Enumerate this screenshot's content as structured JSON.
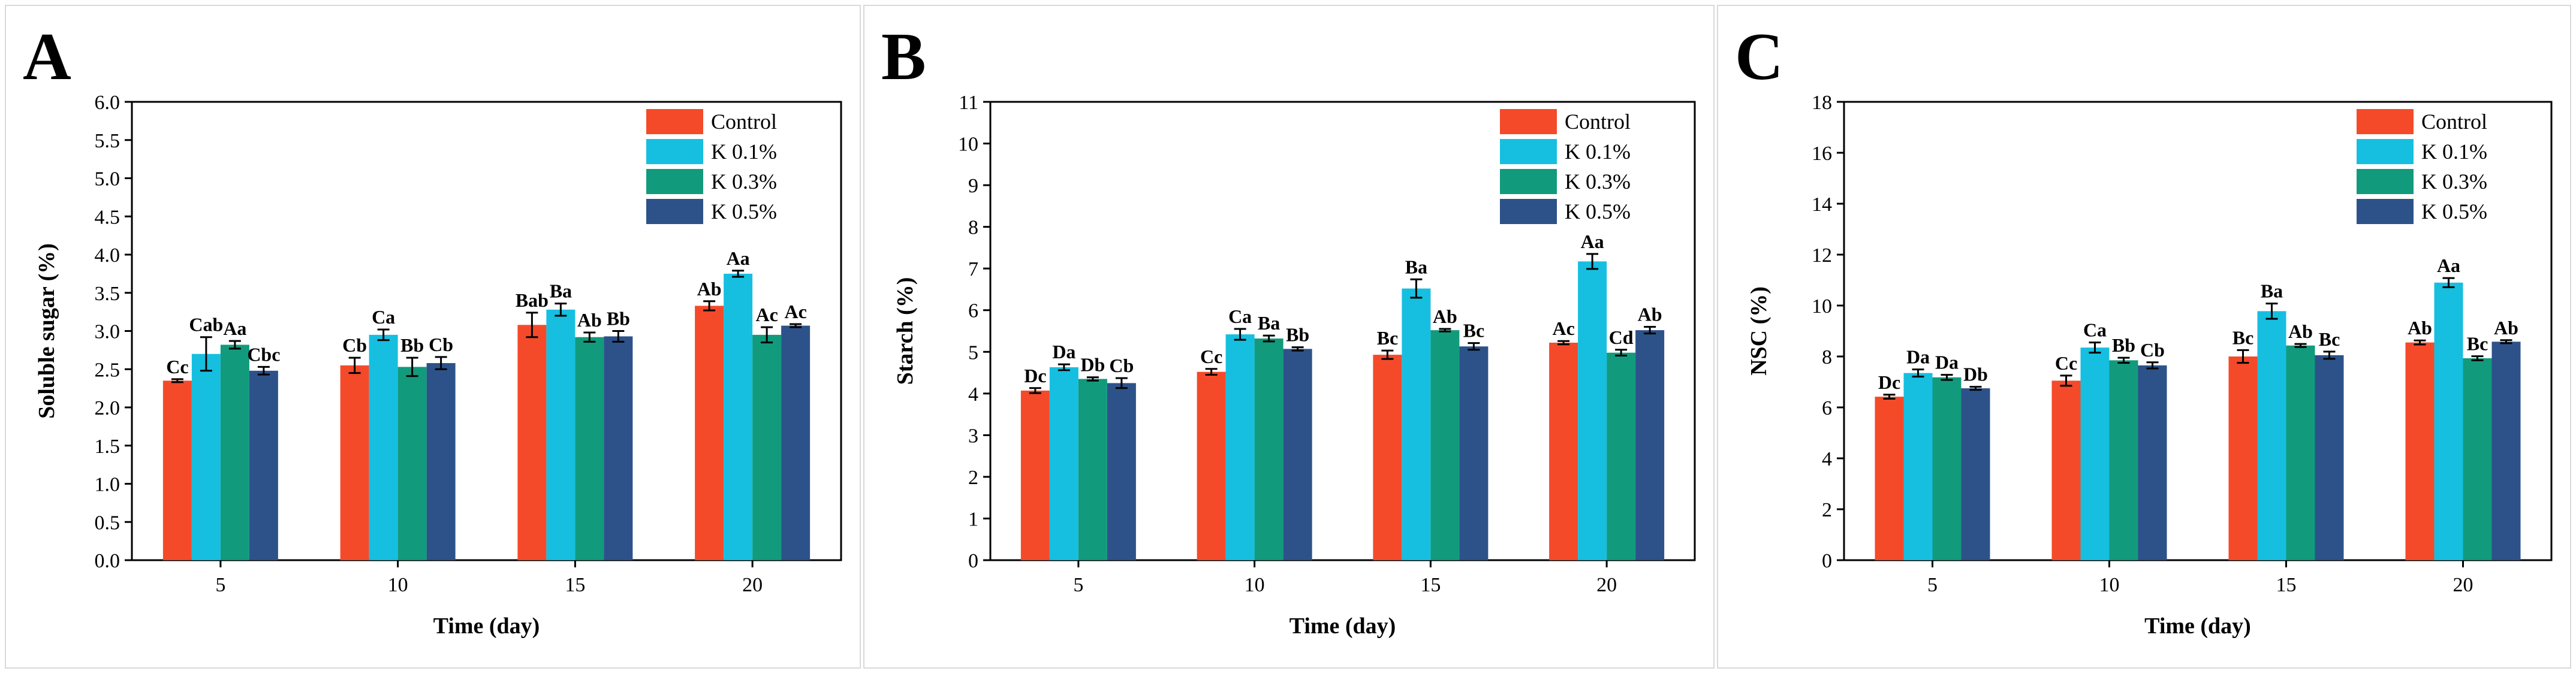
{
  "figure": {
    "colors": {
      "Control": "#f44a2a",
      "K 0.1%": "#16bfe0",
      "K 0.3%": "#129a7c",
      "K 0.5%": "#2c5289"
    }
  },
  "chart_data": [
    {
      "panel_label": "A",
      "type": "bar",
      "xlabel": "Time (day)",
      "ylabel": "Soluble sugar (%)",
      "ylim": [
        0,
        6.0
      ],
      "yticks": [
        "0.0",
        "0.5",
        "1.0",
        "1.5",
        "2.0",
        "2.5",
        "3.0",
        "3.5",
        "4.0",
        "4.5",
        "5.0",
        "5.5",
        "6.0"
      ],
      "categories": [
        "5",
        "10",
        "15",
        "20"
      ],
      "legend": {
        "position": "top-right",
        "entries": [
          "Control",
          "K 0.1%",
          "K 0.3%",
          "K 0.5%"
        ]
      },
      "series": [
        {
          "name": "Control",
          "values": [
            2.35,
            2.55,
            3.08,
            3.33
          ],
          "errors": [
            0.02,
            0.1,
            0.16,
            0.06
          ],
          "labels": [
            "Cc",
            "Cb",
            "Bab",
            "Ab"
          ]
        },
        {
          "name": "K 0.1%",
          "values": [
            2.7,
            2.95,
            3.28,
            3.75
          ],
          "errors": [
            0.22,
            0.07,
            0.08,
            0.04
          ],
          "labels": [
            "Cab",
            "Ca",
            "Ba",
            "Aa"
          ]
        },
        {
          "name": "K 0.3%",
          "values": [
            2.82,
            2.53,
            2.92,
            2.95
          ],
          "errors": [
            0.05,
            0.12,
            0.06,
            0.1
          ],
          "labels": [
            "Aa",
            "Bb",
            "Ab",
            "Ac"
          ]
        },
        {
          "name": "K 0.5%",
          "values": [
            2.48,
            2.58,
            2.93,
            3.07
          ],
          "errors": [
            0.05,
            0.08,
            0.07,
            0.02
          ],
          "labels": [
            "Cbc",
            "Cb",
            "Bb",
            "Ac"
          ]
        }
      ]
    },
    {
      "panel_label": "B",
      "type": "bar",
      "xlabel": "Time (day)",
      "ylabel": "Starch (%)",
      "ylim": [
        0,
        11
      ],
      "yticks": [
        "0",
        "1",
        "2",
        "3",
        "4",
        "5",
        "6",
        "7",
        "8",
        "9",
        "10",
        "11"
      ],
      "categories": [
        "5",
        "10",
        "15",
        "20"
      ],
      "legend": {
        "position": "top-right",
        "entries": [
          "Control",
          "K 0.1%",
          "K 0.3%",
          "K 0.5%"
        ]
      },
      "series": [
        {
          "name": "Control",
          "values": [
            4.07,
            4.52,
            4.93,
            5.22
          ],
          "errors": [
            0.06,
            0.07,
            0.1,
            0.04
          ],
          "labels": [
            "Dc",
            "Cc",
            "Bc",
            "Ac"
          ]
        },
        {
          "name": "K 0.1%",
          "values": [
            4.63,
            5.42,
            6.52,
            7.17
          ],
          "errors": [
            0.07,
            0.13,
            0.22,
            0.18
          ],
          "labels": [
            "Da",
            "Ca",
            "Ba",
            "Aa"
          ]
        },
        {
          "name": "K 0.3%",
          "values": [
            4.35,
            5.32,
            5.52,
            4.98
          ],
          "errors": [
            0.04,
            0.07,
            0.03,
            0.07
          ],
          "labels": [
            "Db",
            "Ba",
            "Ab",
            "Cd"
          ]
        },
        {
          "name": "K 0.5%",
          "values": [
            4.25,
            5.07,
            5.13,
            5.52
          ],
          "errors": [
            0.12,
            0.04,
            0.08,
            0.08
          ],
          "labels": [
            "Cb",
            "Bb",
            "Bc",
            "Ab"
          ]
        }
      ]
    },
    {
      "panel_label": "C",
      "type": "bar",
      "xlabel": "Time (day)",
      "ylabel": "NSC (%)",
      "ylim": [
        0,
        18
      ],
      "yticks": [
        "0",
        "2",
        "4",
        "6",
        "8",
        "10",
        "12",
        "14",
        "16",
        "18"
      ],
      "categories": [
        "5",
        "10",
        "15",
        "20"
      ],
      "legend": {
        "position": "top-right",
        "entries": [
          "Control",
          "K 0.1%",
          "K 0.3%",
          "K 0.5%"
        ]
      },
      "series": [
        {
          "name": "Control",
          "values": [
            6.42,
            7.05,
            8.0,
            8.55
          ],
          "errors": [
            0.08,
            0.2,
            0.25,
            0.08
          ],
          "labels": [
            "Dc",
            "Cc",
            "Bc",
            "Ab"
          ]
        },
        {
          "name": "K 0.1%",
          "values": [
            7.35,
            8.35,
            9.78,
            10.9
          ],
          "errors": [
            0.14,
            0.2,
            0.3,
            0.18
          ],
          "labels": [
            "Da",
            "Ca",
            "Ba",
            "Aa"
          ]
        },
        {
          "name": "K 0.3%",
          "values": [
            7.18,
            7.85,
            8.43,
            7.93
          ],
          "errors": [
            0.1,
            0.1,
            0.06,
            0.08
          ],
          "labels": [
            "Da",
            "Bb",
            "Ab",
            "Bc"
          ]
        },
        {
          "name": "K 0.5%",
          "values": [
            6.75,
            7.65,
            8.05,
            8.58
          ],
          "errors": [
            0.06,
            0.12,
            0.14,
            0.06
          ],
          "labels": [
            "Db",
            "Cb",
            "Bc",
            "Ab"
          ]
        }
      ]
    }
  ]
}
